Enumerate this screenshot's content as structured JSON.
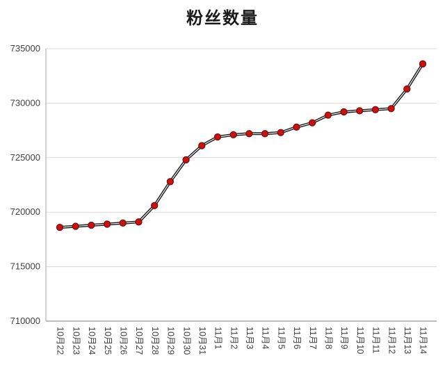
{
  "chart_data": {
    "type": "line",
    "title": "粉丝数量",
    "categories": [
      "10月22",
      "10月23",
      "10月24",
      "10月25",
      "10月26",
      "10月27",
      "10月28",
      "10月29",
      "10月30",
      "10月31",
      "11月1",
      "11月2",
      "11月3",
      "11月4",
      "11月5",
      "11月6",
      "11月7",
      "11月8",
      "11月9",
      "11月10",
      "11月11",
      "11月12",
      "11月13",
      "11月14"
    ],
    "series": [
      {
        "name": "粉丝数量",
        "values": [
          718600,
          718700,
          718800,
          718900,
          719000,
          719100,
          720600,
          722800,
          724800,
          726100,
          726900,
          727100,
          727200,
          727200,
          727300,
          727800,
          728200,
          728900,
          729200,
          729300,
          729400,
          729500,
          731300,
          733600
        ]
      }
    ],
    "ylim": [
      710000,
      735000
    ],
    "ytick_interval": 5000,
    "ytick_labels": [
      "710000",
      "715000",
      "720000",
      "725000",
      "730000",
      "735000"
    ],
    "grid": true,
    "legend": "none",
    "colors": {
      "line_outer": "#1a1a1a",
      "line_inner": "#f5f5f5",
      "marker_fill": "#cc1111",
      "marker_edge": "#7a0c0c",
      "grid_line": "#d9d9d9",
      "axis_line": "#a6a6a6",
      "tick_text": "#404040",
      "title_text": "#1a1a1a"
    }
  }
}
